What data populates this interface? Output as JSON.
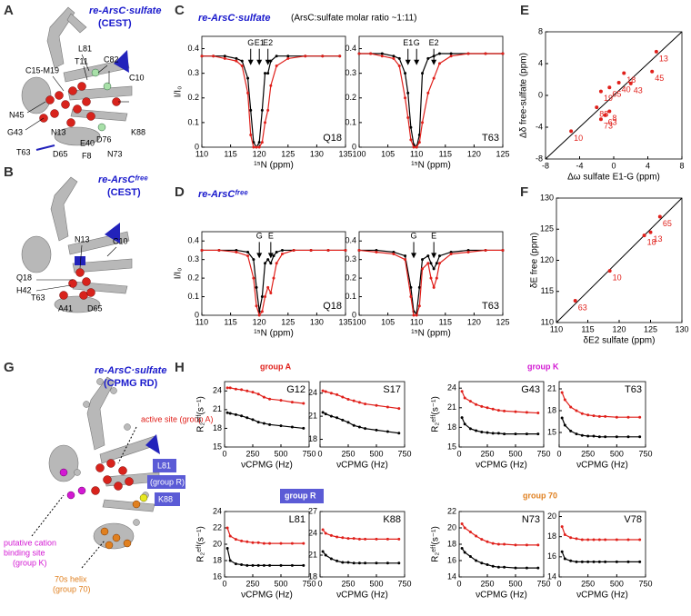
{
  "panels": {
    "A": {
      "letter": "A",
      "title": "re-ArsC·sulfate",
      "subtitle": "(CEST)",
      "labels": [
        "L81",
        "T11",
        "C82",
        "C15-M19",
        "C10",
        "N45",
        "G43",
        "N13",
        "E40",
        "D76",
        "K88",
        "T63",
        "D65",
        "F8",
        "N73"
      ]
    },
    "B": {
      "letter": "B",
      "title": "re-ArsCᶠʳᵉᵉ",
      "subtitle": "(CEST)",
      "labels": [
        "N13",
        "C10",
        "Q18",
        "H42",
        "T63",
        "A41",
        "D65"
      ]
    },
    "C": {
      "letter": "C",
      "title": "re-ArsC·sulfate",
      "subtitle": "(ArsC:sulfate molar ratio ~1:11)"
    },
    "D": {
      "letter": "D",
      "title": "re-ArsCᶠʳᵉᵉ"
    },
    "E": {
      "letter": "E"
    },
    "F": {
      "letter": "F"
    },
    "G": {
      "letter": "G",
      "title": "re-ArsC·sulfate",
      "subtitle": "(CPMG RD)",
      "active": "active site (group A)",
      "L81": "L81",
      "groupR": "(group R)",
      "K88": "K88",
      "cation1": "putative cation",
      "cation2": "binding site",
      "cation3": "(group K)",
      "helix1": "70s helix",
      "helix2": "(group 70)"
    },
    "H": {
      "letter": "H",
      "groups": [
        "group A",
        "group K",
        "group R",
        "group 70"
      ]
    }
  },
  "chart_data": [
    {
      "type": "line",
      "label": "Q18",
      "ylabel": "I/I₀",
      "xlabel": "¹⁵N (ppm)",
      "xlim": [
        110,
        135
      ],
      "xticks": [
        110,
        115,
        120,
        125,
        130,
        135
      ],
      "ylim": [
        0,
        0.45
      ],
      "yticks": [
        0,
        0.1,
        0.2,
        0.3,
        0.4
      ],
      "x": [
        110,
        112,
        114,
        116,
        117,
        118,
        118.5,
        119,
        119.5,
        120,
        120.5,
        121,
        121.5,
        122,
        123,
        125,
        128,
        131,
        134
      ],
      "series": [
        {
          "color": "#000000",
          "values": [
            0.37,
            0.37,
            0.37,
            0.36,
            0.35,
            0.28,
            0.15,
            0.02,
            0,
            0.02,
            0.15,
            0.3,
            0.3,
            0.35,
            0.37,
            0.37,
            0.37,
            0.37,
            0.37
          ]
        },
        {
          "color": "#e0201b",
          "values": [
            0.37,
            0.37,
            0.36,
            0.35,
            0.33,
            0.22,
            0.05,
            0,
            0,
            0,
            0.02,
            0.1,
            0.15,
            0.25,
            0.33,
            0.36,
            0.37,
            0.37,
            0.37
          ]
        }
      ],
      "annotations": [
        {
          "label": "G",
          "x": 118.5
        },
        {
          "label": "E1",
          "x": 120
        },
        {
          "label": "E2",
          "x": 121.5
        }
      ]
    },
    {
      "type": "line",
      "label": "T63",
      "xlabel": "¹⁵N (ppm)",
      "xlim": [
        100,
        125
      ],
      "xticks": [
        100,
        105,
        110,
        115,
        120,
        125
      ],
      "ylim": [
        0,
        0.45
      ],
      "yticks": [
        0,
        0.1,
        0.2,
        0.3,
        0.4
      ],
      "x": [
        100,
        102,
        104,
        106,
        107,
        108,
        108.5,
        109,
        109.5,
        110,
        110.5,
        111,
        112,
        113,
        114,
        116,
        119,
        122,
        125
      ],
      "series": [
        {
          "color": "#000000",
          "values": [
            0.38,
            0.38,
            0.38,
            0.37,
            0.36,
            0.3,
            0.22,
            0.08,
            0.01,
            0,
            0.05,
            0.3,
            0.36,
            0.37,
            0.38,
            0.38,
            0.38,
            0.38,
            0.38
          ]
        },
        {
          "color": "#e0201b",
          "values": [
            0.38,
            0.38,
            0.37,
            0.36,
            0.33,
            0.2,
            0.12,
            0.03,
            0,
            0,
            0.02,
            0.1,
            0.22,
            0.28,
            0.34,
            0.37,
            0.38,
            0.38,
            0.38
          ]
        }
      ],
      "annotations": [
        {
          "label": "E1",
          "x": 108.5
        },
        {
          "label": "G",
          "x": 110
        },
        {
          "label": "E2",
          "x": 113
        }
      ]
    },
    {
      "type": "line",
      "label": "Q18",
      "ylabel": "I/I₀",
      "xlabel": "¹⁵N (ppm)",
      "xlim": [
        110,
        135
      ],
      "xticks": [
        110,
        115,
        120,
        125,
        130,
        135
      ],
      "ylim": [
        0,
        0.45
      ],
      "yticks": [
        0,
        0.1,
        0.2,
        0.3,
        0.4
      ],
      "x": [
        110,
        113,
        116,
        118,
        119,
        119.5,
        120,
        120.5,
        121,
        121.5,
        122,
        122.5,
        123,
        124,
        126,
        129,
        132,
        135
      ],
      "series": [
        {
          "color": "#000000",
          "values": [
            0.35,
            0.35,
            0.35,
            0.34,
            0.3,
            0.15,
            0.02,
            0.1,
            0.28,
            0.3,
            0.28,
            0.32,
            0.34,
            0.35,
            0.35,
            0.35,
            0.35,
            0.35
          ]
        },
        {
          "color": "#e0201b",
          "values": [
            0.35,
            0.35,
            0.34,
            0.32,
            0.2,
            0.05,
            0,
            0.02,
            0.1,
            0.15,
            0.12,
            0.2,
            0.28,
            0.33,
            0.35,
            0.35,
            0.35,
            0.35
          ]
        }
      ],
      "annotations": [
        {
          "label": "G",
          "x": 120
        },
        {
          "label": "E",
          "x": 122
        }
      ]
    },
    {
      "type": "line",
      "label": "T63",
      "xlabel": "¹⁵N (ppm)",
      "xlim": [
        100,
        125
      ],
      "xticks": [
        100,
        105,
        110,
        115,
        120,
        125
      ],
      "ylim": [
        0,
        0.45
      ],
      "yticks": [
        0,
        0.1,
        0.2,
        0.3,
        0.4
      ],
      "x": [
        100,
        103,
        106,
        108,
        109,
        109.5,
        110,
        110.5,
        111,
        112,
        112.5,
        113,
        113.5,
        114,
        116,
        119,
        122,
        125
      ],
      "series": [
        {
          "color": "#000000",
          "values": [
            0.35,
            0.35,
            0.34,
            0.32,
            0.15,
            0.02,
            0.01,
            0.15,
            0.3,
            0.32,
            0.28,
            0.25,
            0.28,
            0.32,
            0.34,
            0.35,
            0.35,
            0.35
          ]
        },
        {
          "color": "#e0201b",
          "values": [
            0.35,
            0.34,
            0.33,
            0.3,
            0.1,
            0,
            0,
            0.05,
            0.25,
            0.28,
            0.2,
            0.15,
            0.2,
            0.28,
            0.33,
            0.34,
            0.35,
            0.35
          ]
        }
      ],
      "annotations": [
        {
          "label": "G",
          "x": 109.5
        },
        {
          "label": "E",
          "x": 113
        }
      ]
    },
    {
      "type": "scatter",
      "color": "#e0201b",
      "ylabel": "Δδ free-sulfate (ppm)",
      "xlabel": "Δω sulfate E1-G (ppm)",
      "xlim": [
        -8,
        8
      ],
      "xticks": [
        -8,
        -4,
        0,
        4,
        8
      ],
      "ylim": [
        -8,
        8
      ],
      "yticks": [
        -8,
        -4,
        0,
        4,
        8
      ],
      "x": [
        5,
        4.5,
        2,
        0.6,
        1.2,
        -0.5,
        -1.5,
        -2,
        -0.5,
        -1,
        -1.5,
        -5
      ],
      "values": [
        5.5,
        3,
        1.5,
        1.6,
        2.8,
        1,
        0.5,
        -1.5,
        -2,
        -2.5,
        -3,
        -4.5
      ],
      "point_labels": [
        "13",
        "45",
        "43",
        "40",
        "18",
        "65",
        "19",
        "88",
        "8",
        "63",
        "73",
        "10"
      ]
    },
    {
      "type": "scatter",
      "color": "#e0201b",
      "ylabel": "δE free (ppm)",
      "xlabel": "δE2 sulfate (ppm)",
      "xlim": [
        110,
        130
      ],
      "xticks": [
        110,
        115,
        120,
        125,
        130
      ],
      "ylim": [
        110,
        130
      ],
      "yticks": [
        110,
        115,
        120,
        125,
        130
      ],
      "x": [
        118.5,
        113,
        124,
        125,
        126.5
      ],
      "values": [
        118.3,
        113.5,
        124,
        124.5,
        127
      ],
      "point_labels": [
        "10",
        "63",
        "18",
        "13",
        "65"
      ]
    },
    {
      "type": "line",
      "label": "G12",
      "ylabel": "R₂ᵉᶠᶠ(s⁻¹)",
      "xlabel": "νCPMG (Hz)",
      "xlim": [
        0,
        750
      ],
      "xticks": [
        0,
        250,
        500,
        750
      ],
      "ylim": [
        15,
        25.5
      ],
      "yticks": [
        15,
        18,
        21,
        24
      ],
      "x": [
        25,
        50,
        100,
        150,
        200,
        250,
        300,
        350,
        400,
        500,
        600,
        700
      ],
      "series": [
        {
          "color": "#e0201b",
          "values": [
            24.5,
            24.5,
            24.3,
            24.2,
            24,
            23.8,
            23.5,
            23,
            22.7,
            22.5,
            22.2,
            22
          ]
        },
        {
          "color": "#000000",
          "values": [
            20.5,
            20.4,
            20.2,
            20,
            19.7,
            19.4,
            19,
            18.8,
            18.6,
            18.4,
            18.2,
            18
          ]
        }
      ]
    },
    {
      "type": "line",
      "label": "S17",
      "xlabel": "νCPMG (Hz)",
      "xlim": [
        0,
        750
      ],
      "xticks": [
        0,
        250,
        500,
        750
      ],
      "ylim": [
        17,
        25.5
      ],
      "yticks": [
        18,
        21,
        24
      ],
      "x": [
        25,
        50,
        100,
        150,
        200,
        250,
        300,
        350,
        400,
        500,
        600,
        700
      ],
      "series": [
        {
          "color": "#e0201b",
          "values": [
            24.3,
            24.2,
            24,
            23.8,
            23.5,
            23.2,
            23,
            22.8,
            22.6,
            22.4,
            22.2,
            22
          ]
        },
        {
          "color": "#000000",
          "values": [
            21.5,
            21.3,
            21,
            20.8,
            20.5,
            20.2,
            19.8,
            19.6,
            19.4,
            19.2,
            19,
            18.8
          ]
        }
      ]
    },
    {
      "type": "line",
      "label": "G43",
      "ylabel": "R₂ᵉᶠᶠ(s⁻¹)",
      "xlabel": "νCPMG (Hz)",
      "xlim": [
        0,
        750
      ],
      "xticks": [
        0,
        250,
        500,
        750
      ],
      "ylim": [
        15,
        25
      ],
      "yticks": [
        15,
        18,
        21,
        24
      ],
      "x": [
        25,
        50,
        100,
        150,
        200,
        250,
        300,
        350,
        400,
        500,
        600,
        700
      ],
      "series": [
        {
          "color": "#e0201b",
          "values": [
            23.5,
            22.5,
            22,
            21.5,
            21.2,
            21,
            20.8,
            20.6,
            20.5,
            20.4,
            20.3,
            20.2
          ]
        },
        {
          "color": "#000000",
          "values": [
            19.5,
            18.5,
            17.8,
            17.5,
            17.3,
            17.2,
            17.1,
            17.1,
            17,
            17,
            17,
            17
          ]
        }
      ]
    },
    {
      "type": "line",
      "label": "T63",
      "xlabel": "νCPMG (Hz)",
      "xlim": [
        0,
        750
      ],
      "xticks": [
        0,
        250,
        500,
        750
      ],
      "ylim": [
        13,
        22
      ],
      "yticks": [
        15,
        18,
        21
      ],
      "x": [
        25,
        50,
        100,
        150,
        200,
        250,
        300,
        350,
        400,
        500,
        600,
        700
      ],
      "series": [
        {
          "color": "#e0201b",
          "values": [
            20.5,
            19.5,
            18.5,
            18,
            17.6,
            17.4,
            17.3,
            17.2,
            17.2,
            17.1,
            17.1,
            17.1
          ]
        },
        {
          "color": "#000000",
          "values": [
            17,
            16,
            15.2,
            14.8,
            14.6,
            14.5,
            14.5,
            14.4,
            14.4,
            14.4,
            14.4,
            14.4
          ]
        }
      ]
    },
    {
      "type": "line",
      "label": "L81",
      "ylabel": "R₂ᵉᶠᶠ(s⁻¹)",
      "xlabel": "νCPMG (Hz)",
      "xlim": [
        0,
        750
      ],
      "xticks": [
        0,
        250,
        500,
        750
      ],
      "ylim": [
        16,
        24
      ],
      "yticks": [
        16,
        18,
        20,
        22,
        24
      ],
      "x": [
        25,
        50,
        100,
        150,
        200,
        250,
        300,
        350,
        400,
        500,
        600,
        700
      ],
      "series": [
        {
          "color": "#e0201b",
          "values": [
            22,
            21,
            20.6,
            20.4,
            20.3,
            20.2,
            20.2,
            20.1,
            20.1,
            20.1,
            20.1,
            20.1
          ]
        },
        {
          "color": "#000000",
          "values": [
            19.5,
            18,
            17.6,
            17.5,
            17.4,
            17.4,
            17.4,
            17.4,
            17.4,
            17.4,
            17.4,
            17.4
          ]
        }
      ]
    },
    {
      "type": "line",
      "label": "K88",
      "xlabel": "νCPMG (Hz)",
      "xlim": [
        0,
        750
      ],
      "xticks": [
        0,
        250,
        500,
        750
      ],
      "ylim": [
        18,
        27
      ],
      "yticks": [
        18,
        21,
        24,
        27
      ],
      "x": [
        25,
        50,
        100,
        150,
        200,
        250,
        300,
        350,
        400,
        500,
        600,
        700
      ],
      "series": [
        {
          "color": "#e0201b",
          "values": [
            24.5,
            24,
            23.7,
            23.5,
            23.4,
            23.3,
            23.3,
            23.2,
            23.2,
            23.2,
            23.2,
            23.2
          ]
        },
        {
          "color": "#000000",
          "values": [
            21.5,
            21,
            20.5,
            20.2,
            20,
            20,
            19.9,
            19.9,
            19.9,
            19.9,
            19.9,
            19.9
          ]
        }
      ]
    },
    {
      "type": "line",
      "label": "N73",
      "ylabel": "R₂ᵉᶠᶠ(s⁻¹)",
      "xlabel": "νCPMG (Hz)",
      "xlim": [
        0,
        750
      ],
      "xticks": [
        0,
        250,
        500,
        750
      ],
      "ylim": [
        14,
        22
      ],
      "yticks": [
        14,
        16,
        18,
        20,
        22
      ],
      "x": [
        25,
        50,
        100,
        150,
        200,
        250,
        300,
        350,
        400,
        500,
        600,
        700
      ],
      "series": [
        {
          "color": "#e0201b",
          "values": [
            20.5,
            20,
            19.5,
            19,
            18.6,
            18.3,
            18.1,
            18,
            18,
            17.9,
            17.9,
            17.9
          ]
        },
        {
          "color": "#000000",
          "values": [
            17.5,
            17,
            16.5,
            16,
            15.7,
            15.5,
            15.3,
            15.2,
            15.2,
            15.1,
            15.1,
            15.1
          ]
        }
      ]
    },
    {
      "type": "line",
      "label": "V78",
      "xlabel": "νCPMG (Hz)",
      "xlim": [
        0,
        750
      ],
      "xticks": [
        0,
        250,
        500,
        750
      ],
      "ylim": [
        14,
        20.5
      ],
      "yticks": [
        14,
        16,
        18,
        20
      ],
      "x": [
        25,
        50,
        100,
        150,
        200,
        250,
        300,
        350,
        400,
        500,
        600,
        700
      ],
      "series": [
        {
          "color": "#e0201b",
          "values": [
            19,
            18.2,
            17.9,
            17.8,
            17.7,
            17.7,
            17.7,
            17.7,
            17.7,
            17.7,
            17.7,
            17.7
          ]
        },
        {
          "color": "#000000",
          "values": [
            16.5,
            15.8,
            15.6,
            15.5,
            15.5,
            15.5,
            15.5,
            15.5,
            15.5,
            15.5,
            15.5,
            15.5
          ]
        }
      ]
    }
  ]
}
